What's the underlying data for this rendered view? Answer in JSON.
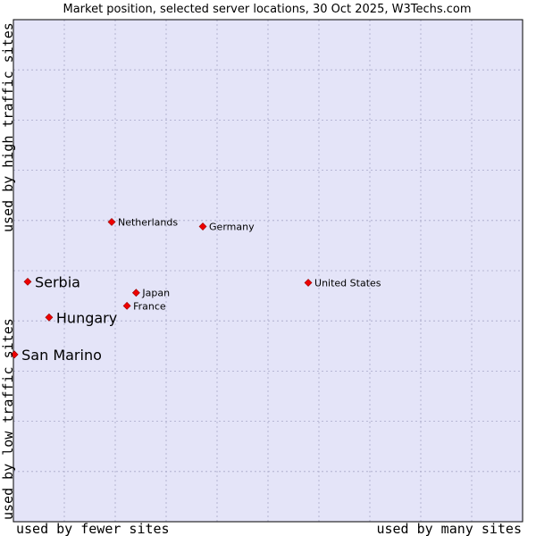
{
  "chart_data": {
    "type": "scatter",
    "title": "Market position, selected server locations, 30 Oct 2025, W3Techs.com",
    "xlabel_left": "used by fewer sites",
    "xlabel_right": "used by many sites",
    "ylabel_bottom": "used by low traffic sites",
    "ylabel_top": "used by high traffic sites",
    "xlim": [
      0,
      100
    ],
    "ylim": [
      0,
      100
    ],
    "grid": true,
    "gridlines": 10,
    "colors": {
      "plot_bg": "#e4e4f8",
      "grid": "#a8a8c8",
      "marker": "#ee0000",
      "frame": "#000000"
    },
    "points": [
      {
        "label": "Netherlands",
        "x": 19.3,
        "y": 59.7,
        "emphasis": false
      },
      {
        "label": "Germany",
        "x": 37.2,
        "y": 58.8,
        "emphasis": false
      },
      {
        "label": "United States",
        "x": 57.9,
        "y": 47.6,
        "emphasis": false
      },
      {
        "label": "Serbia",
        "x": 2.8,
        "y": 47.8,
        "emphasis": true
      },
      {
        "label": "Japan",
        "x": 24.1,
        "y": 45.6,
        "emphasis": false
      },
      {
        "label": "France",
        "x": 22.3,
        "y": 43.0,
        "emphasis": false
      },
      {
        "label": "Hungary",
        "x": 7.0,
        "y": 40.7,
        "emphasis": true
      },
      {
        "label": "San Marino",
        "x": 0.2,
        "y": 33.3,
        "emphasis": true
      }
    ]
  }
}
